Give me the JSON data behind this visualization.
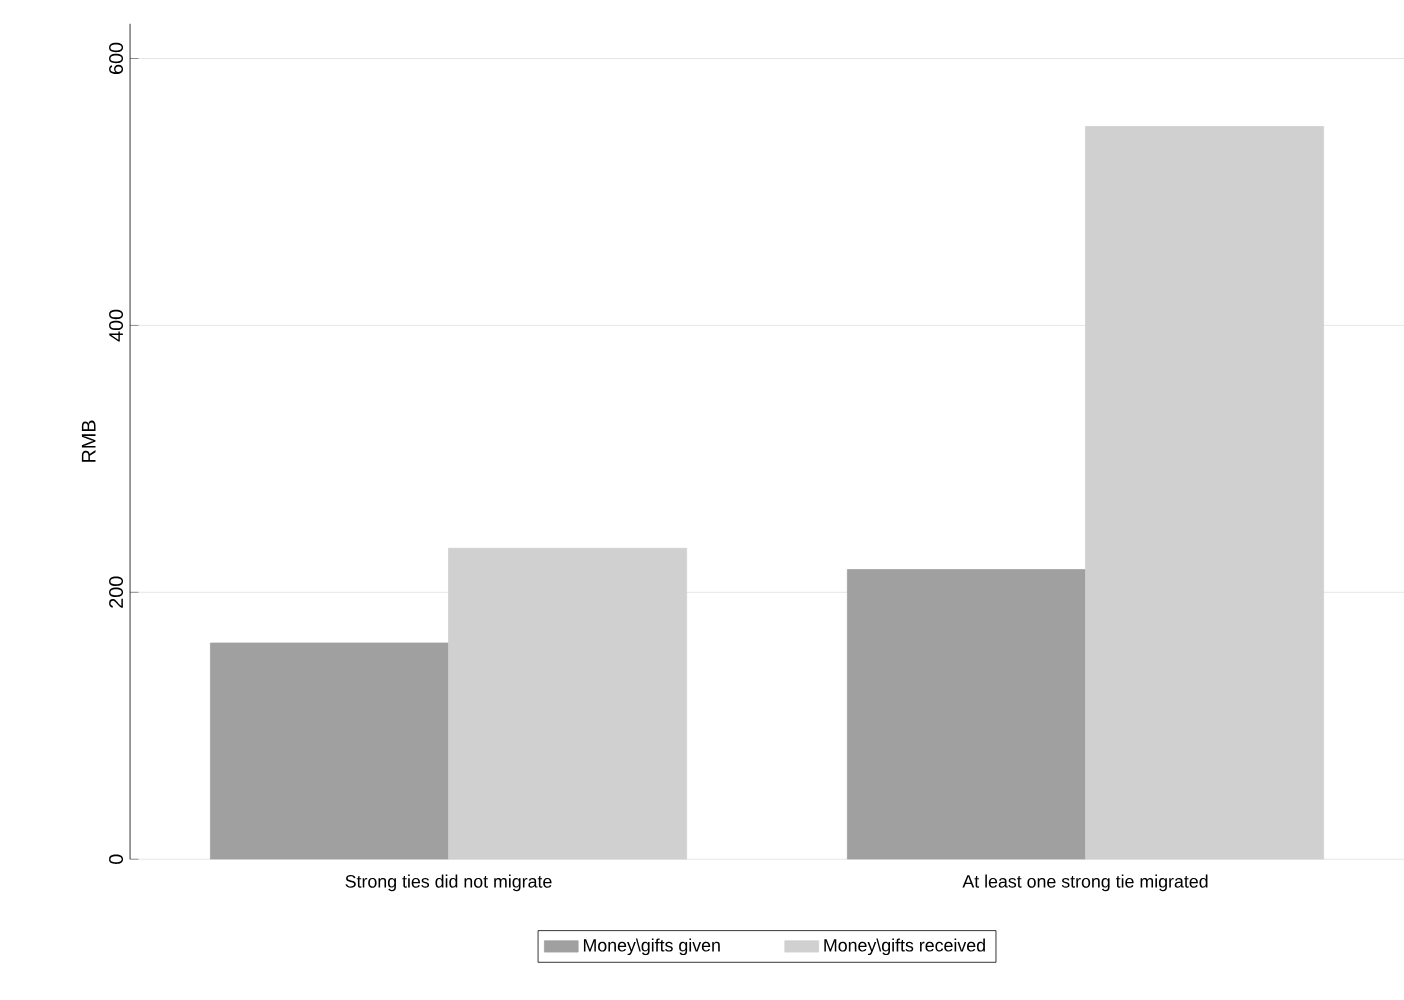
{
  "chart_data": {
    "type": "bar",
    "ylabel": "RMB",
    "categories": [
      "Strong ties did not migrate",
      "At least one strong tie migrated"
    ],
    "series": [
      {
        "name": "Money\\gifts given",
        "color": "#a0a0a0",
        "values": [
          162,
          217
        ]
      },
      {
        "name": "Money\\gifts received",
        "color": "#d0d0d0",
        "values": [
          233,
          549
        ]
      }
    ],
    "ylim": [
      0,
      626
    ],
    "yticks": [
      0,
      200,
      400,
      600
    ],
    "grid": "y",
    "legend": "bottom"
  }
}
